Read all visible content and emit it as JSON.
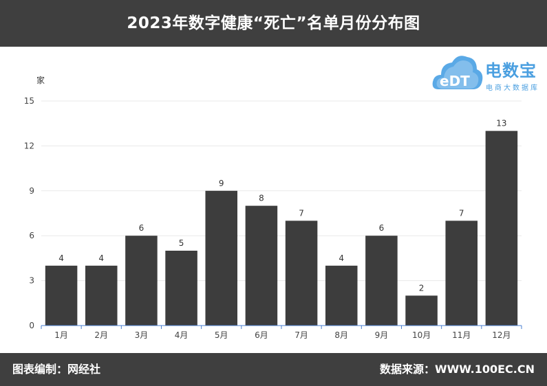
{
  "header": {
    "title": "2023年数字健康“死亡”名单月份分布图"
  },
  "logo": {
    "brand": "电数宝",
    "mark": "eDT",
    "subtitle": "电商大数据库"
  },
  "footer": {
    "left": "图表编制：网经社",
    "right": "数据来源：WWW.100EC.CN"
  },
  "colors": {
    "bar": "#3d3d3d",
    "header_bg": "#3f3f3f",
    "axis": "#4a7fd0",
    "logo": "#4a9fe0"
  },
  "chart_data": {
    "type": "bar",
    "title": "2023年数字健康“死亡”名单月份分布图",
    "ylabel": "家",
    "xlabel": "",
    "categories": [
      "1月",
      "2月",
      "3月",
      "4月",
      "5月",
      "6月",
      "7月",
      "8月",
      "9月",
      "10月",
      "11月",
      "12月"
    ],
    "values": [
      4,
      4,
      6,
      5,
      9,
      8,
      7,
      4,
      6,
      2,
      7,
      13
    ],
    "ylim": [
      0,
      15
    ],
    "yticks": [
      0,
      3,
      6,
      9,
      12,
      15
    ],
    "grid": true,
    "legend": "none",
    "data_labels": true
  }
}
